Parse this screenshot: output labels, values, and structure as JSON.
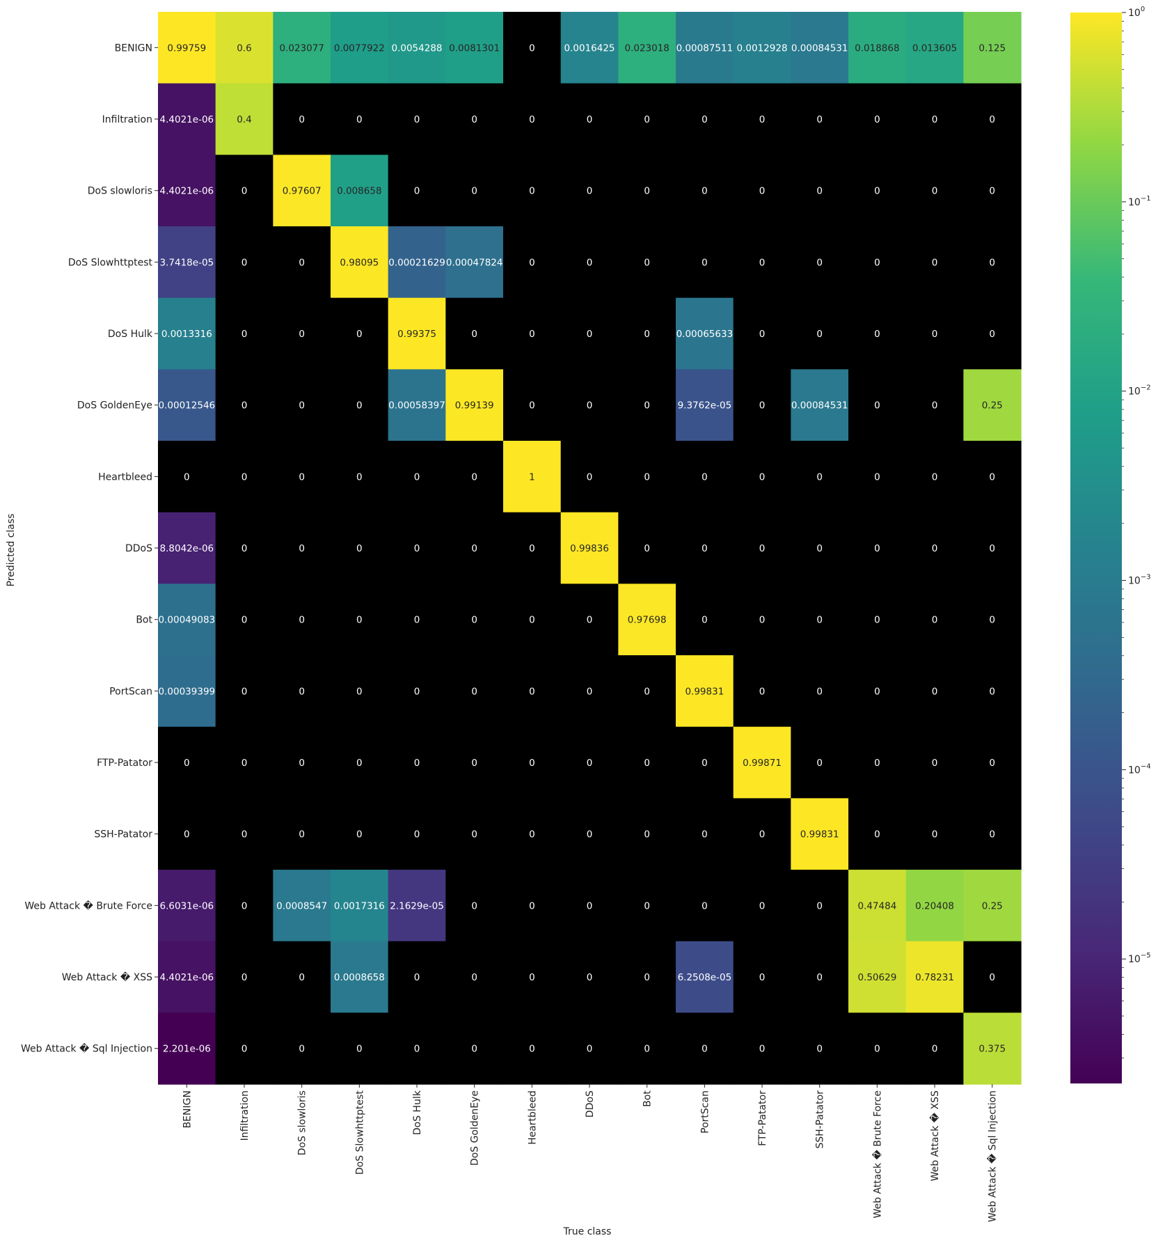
{
  "chart_data": {
    "type": "heatmap",
    "title": "",
    "xlabel": "True class",
    "ylabel": "Predicted class",
    "x_categories": [
      "BENIGN",
      "Infiltration",
      "DoS slowloris",
      "DoS Slowhttptest",
      "DoS Hulk",
      "DoS GoldenEye",
      "Heartbleed",
      "DDoS",
      "Bot",
      "PortScan",
      "FTP-Patator",
      "SSH-Patator",
      "Web Attack � Brute Force",
      "Web Attack � XSS",
      "Web Attack � Sql Injection"
    ],
    "y_categories": [
      "BENIGN",
      "Infiltration",
      "DoS slowloris",
      "DoS Slowhttptest",
      "DoS Hulk",
      "DoS GoldenEye",
      "Heartbleed",
      "DDoS",
      "Bot",
      "PortScan",
      "FTP-Patator",
      "SSH-Patator",
      "Web Attack � Brute Force",
      "Web Attack � XSS",
      "Web Attack � Sql Injection"
    ],
    "values": [
      [
        0.99759,
        0.6,
        0.023077,
        0.0077922,
        0.0054288,
        0.0081301,
        0,
        0.0016425,
        0.023018,
        0.00087511,
        0.0012928,
        0.00084531,
        0.018868,
        0.013605,
        0.125
      ],
      [
        4.4021e-06,
        0.4,
        0,
        0,
        0,
        0,
        0,
        0,
        0,
        0,
        0,
        0,
        0,
        0,
        0
      ],
      [
        4.4021e-06,
        0,
        0.97607,
        0.008658,
        0,
        0,
        0,
        0,
        0,
        0,
        0,
        0,
        0,
        0,
        0
      ],
      [
        3.7418e-05,
        0,
        0,
        0.98095,
        0.00021629,
        0.00047824,
        0,
        0,
        0,
        0,
        0,
        0,
        0,
        0,
        0
      ],
      [
        0.0013316,
        0,
        0,
        0,
        0.99375,
        0,
        0,
        0,
        0,
        0.00065633,
        0,
        0,
        0,
        0,
        0
      ],
      [
        0.00012546,
        0,
        0,
        0,
        0.00058397,
        0.99139,
        0,
        0,
        0,
        9.3762e-05,
        0,
        0.00084531,
        0,
        0,
        0.25
      ],
      [
        0,
        0,
        0,
        0,
        0,
        0,
        1,
        0,
        0,
        0,
        0,
        0,
        0,
        0,
        0
      ],
      [
        8.8042e-06,
        0,
        0,
        0,
        0,
        0,
        0,
        0.99836,
        0,
        0,
        0,
        0,
        0,
        0,
        0
      ],
      [
        0.00049083,
        0,
        0,
        0,
        0,
        0,
        0,
        0,
        0.97698,
        0,
        0,
        0,
        0,
        0,
        0
      ],
      [
        0.00039399,
        0,
        0,
        0,
        0,
        0,
        0,
        0,
        0,
        0.99831,
        0,
        0,
        0,
        0,
        0
      ],
      [
        0,
        0,
        0,
        0,
        0,
        0,
        0,
        0,
        0,
        0,
        0.99871,
        0,
        0,
        0,
        0
      ],
      [
        0,
        0,
        0,
        0,
        0,
        0,
        0,
        0,
        0,
        0,
        0,
        0.99831,
        0,
        0,
        0
      ],
      [
        6.6031e-06,
        0,
        0.0008547,
        0.0017316,
        2.1629e-05,
        0,
        0,
        0,
        0,
        0,
        0,
        0,
        0.47484,
        0.20408,
        0.25
      ],
      [
        4.4021e-06,
        0,
        0,
        0.0008658,
        0,
        0,
        0,
        0,
        0,
        6.2508e-05,
        0,
        0,
        0.50629,
        0.78231,
        0
      ],
      [
        2.201e-06,
        0,
        0,
        0,
        0,
        0,
        0,
        0,
        0,
        0,
        0,
        0,
        0,
        0,
        0.375
      ]
    ],
    "labels": [
      [
        "0.99759",
        "0.6",
        "0.023077",
        "0.0077922",
        "0.0054288",
        "0.0081301",
        "0",
        "0.0016425",
        "0.023018",
        "0.00087511",
        "0.0012928",
        "0.00084531",
        "0.018868",
        "0.013605",
        "0.125"
      ],
      [
        "4.4021e-06",
        "0.4",
        "0",
        "0",
        "0",
        "0",
        "0",
        "0",
        "0",
        "0",
        "0",
        "0",
        "0",
        "0",
        "0"
      ],
      [
        "4.4021e-06",
        "0",
        "0.97607",
        "0.008658",
        "0",
        "0",
        "0",
        "0",
        "0",
        "0",
        "0",
        "0",
        "0",
        "0",
        "0"
      ],
      [
        "3.7418e-05",
        "0",
        "0",
        "0.98095",
        "0.00021629",
        "0.00047824",
        "0",
        "0",
        "0",
        "0",
        "0",
        "0",
        "0",
        "0",
        "0"
      ],
      [
        "0.0013316",
        "0",
        "0",
        "0",
        "0.99375",
        "0",
        "0",
        "0",
        "0",
        "0.00065633",
        "0",
        "0",
        "0",
        "0",
        "0"
      ],
      [
        "0.00012546",
        "0",
        "0",
        "0",
        "0.00058397",
        "0.99139",
        "0",
        "0",
        "0",
        "9.3762e-05",
        "0",
        "0.00084531",
        "0",
        "0",
        "0.25"
      ],
      [
        "0",
        "0",
        "0",
        "0",
        "0",
        "0",
        "1",
        "0",
        "0",
        "0",
        "0",
        "0",
        "0",
        "0",
        "0"
      ],
      [
        "8.8042e-06",
        "0",
        "0",
        "0",
        "0",
        "0",
        "0",
        "0.99836",
        "0",
        "0",
        "0",
        "0",
        "0",
        "0",
        "0"
      ],
      [
        "0.00049083",
        "0",
        "0",
        "0",
        "0",
        "0",
        "0",
        "0",
        "0.97698",
        "0",
        "0",
        "0",
        "0",
        "0",
        "0"
      ],
      [
        "0.00039399",
        "0",
        "0",
        "0",
        "0",
        "0",
        "0",
        "0",
        "0",
        "0.99831",
        "0",
        "0",
        "0",
        "0",
        "0"
      ],
      [
        "0",
        "0",
        "0",
        "0",
        "0",
        "0",
        "0",
        "0",
        "0",
        "0",
        "0.99871",
        "0",
        "0",
        "0",
        "0"
      ],
      [
        "0",
        "0",
        "0",
        "0",
        "0",
        "0",
        "0",
        "0",
        "0",
        "0",
        "0",
        "0.99831",
        "0",
        "0",
        "0"
      ],
      [
        "6.6031e-06",
        "0",
        "0.0008547",
        "0.0017316",
        "2.1629e-05",
        "0",
        "0",
        "0",
        "0",
        "0",
        "0",
        "0",
        "0.47484",
        "0.20408",
        "0.25"
      ],
      [
        "4.4021e-06",
        "0",
        "0",
        "0.0008658",
        "0",
        "0",
        "0",
        "0",
        "0",
        "6.2508e-05",
        "0",
        "0",
        "0.50629",
        "0.78231",
        "0"
      ],
      [
        "2.201e-06",
        "0",
        "0",
        "0",
        "0",
        "0",
        "0",
        "0",
        "0",
        "0",
        "0",
        "0",
        "0",
        "0",
        "0.375"
      ]
    ],
    "colorscale": "viridis",
    "color_scale_type": "log",
    "zero_color": "#000000",
    "colorbar": {
      "range": [
        2.2e-06,
        1
      ],
      "ticks": [
        {
          "value": 1,
          "base": "10",
          "exp": "0"
        },
        {
          "value": 0.1,
          "base": "10",
          "exp": "−1"
        },
        {
          "value": 0.01,
          "base": "10",
          "exp": "−2"
        },
        {
          "value": 0.001,
          "base": "10",
          "exp": "−3"
        },
        {
          "value": 0.0001,
          "base": "10",
          "exp": "−4"
        },
        {
          "value": 1e-05,
          "base": "10",
          "exp": "−5"
        }
      ]
    },
    "grid": false,
    "legend": "colorbar-right"
  }
}
